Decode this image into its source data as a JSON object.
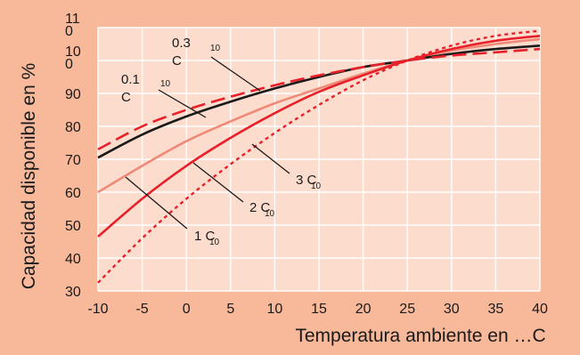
{
  "chart_data": {
    "type": "line",
    "title": "",
    "xlabel": "Temperatura ambiente en …C",
    "ylabel": "Capacidad disponible en %",
    "xlim": [
      -10,
      40
    ],
    "ylim": [
      30,
      110
    ],
    "x_ticks": [
      -10,
      -5,
      0,
      5,
      10,
      15,
      20,
      25,
      30,
      35,
      40
    ],
    "y_tick_labels": [
      {
        "value": 30,
        "text": "30"
      },
      {
        "value": 40,
        "text": "40"
      },
      {
        "value": 50,
        "text": "50"
      },
      {
        "value": 60,
        "text": "60"
      },
      {
        "value": 70,
        "text": "70"
      },
      {
        "value": 80,
        "text": "80"
      },
      {
        "value": 90,
        "text": "90"
      },
      {
        "value": 100,
        "text": "10\n0"
      },
      {
        "value": 110,
        "text": "11\n0"
      }
    ],
    "grid": true,
    "colors": {
      "background": "#f8b89a",
      "plot_area": "#fcdccd",
      "grid": "#ffffff",
      "black": "#1a1a1a",
      "red": "#e8202a",
      "pink": "#f08a78"
    },
    "series": [
      {
        "name": "0.1 C10",
        "color": "#1a1a1a",
        "style": "solid",
        "x": [
          -10,
          -5,
          0,
          5,
          10,
          15,
          20,
          25,
          30,
          35,
          40
        ],
        "y": [
          70.5,
          77.5,
          83,
          87.5,
          91.5,
          95,
          98,
          100,
          102,
          103.5,
          104.5
        ]
      },
      {
        "name": "0.3 C10",
        "color": "#e8202a",
        "style": "dashed",
        "x": [
          -10,
          -5,
          0,
          5,
          10,
          15,
          20,
          25,
          30,
          35,
          40
        ],
        "y": [
          73,
          80,
          85,
          89,
          92.5,
          95.5,
          98,
          100,
          101.5,
          102.5,
          103.5
        ]
      },
      {
        "name": "1 C10",
        "color": "#f08a78",
        "style": "solid",
        "x": [
          -10,
          -5,
          0,
          5,
          10,
          15,
          20,
          25,
          30,
          35,
          40
        ],
        "y": [
          60,
          68,
          75.5,
          81.5,
          87,
          91.5,
          96,
          100,
          103,
          105,
          106.5
        ]
      },
      {
        "name": "2 C10",
        "color": "#e8202a",
        "style": "solid",
        "x": [
          -10,
          -5,
          0,
          5,
          10,
          15,
          20,
          25,
          30,
          35,
          40
        ],
        "y": [
          46.5,
          58,
          68,
          76.5,
          84,
          90.5,
          95.5,
          100,
          103.5,
          106,
          107.5
        ]
      },
      {
        "name": "3 C10",
        "color": "#e8202a",
        "style": "dotted",
        "x": [
          -10,
          -5,
          0,
          5,
          10,
          15,
          20,
          25,
          30,
          35,
          40
        ],
        "y": [
          32.5,
          46,
          58,
          68.5,
          78,
          86.5,
          94,
          100,
          104.5,
          107.5,
          109
        ]
      }
    ],
    "annotations": [
      {
        "lines": [
          "0.3",
          "C"
        ],
        "sub": "10",
        "series": "0.3 C10"
      },
      {
        "lines": [
          "0.1",
          "C"
        ],
        "sub": "10",
        "series": "0.1 C10"
      },
      {
        "lines": [
          "1 C"
        ],
        "sub": "10",
        "series": "1 C10"
      },
      {
        "lines": [
          "2 C"
        ],
        "sub": "10",
        "series": "2 C10"
      },
      {
        "lines": [
          "3 C"
        ],
        "sub": "10",
        "series": "3 C10"
      }
    ]
  }
}
